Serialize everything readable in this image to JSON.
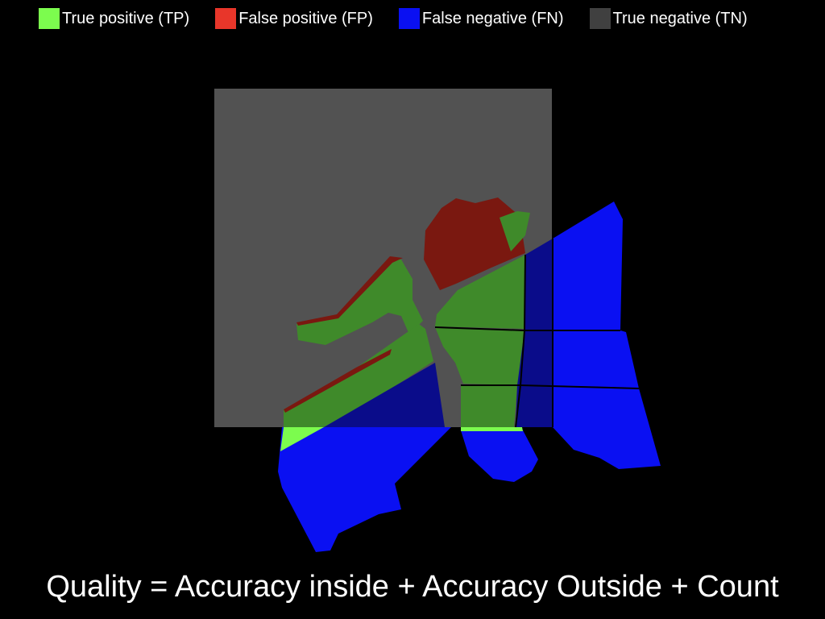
{
  "legend": [
    {
      "key": "tp",
      "label": "True positive (TP)",
      "color": "#7CFC4E"
    },
    {
      "key": "fp",
      "label": "False positive (FP)",
      "color": "#E8362A"
    },
    {
      "key": "fn",
      "label": "False negative (FN)",
      "color": "#0A10F2"
    },
    {
      "key": "tn",
      "label": "True negative (TN)",
      "color": "#404040"
    }
  ],
  "colors": {
    "background": "#000000",
    "tp_inside": "#3F8A2A",
    "fp_inside": "#7A1810",
    "fn_inside": "#0A0C8A",
    "tn_region": "#525252",
    "region_outline": "#000000"
  },
  "caption": "Quality = Accuracy inside + Accuracy Outside + Count"
}
